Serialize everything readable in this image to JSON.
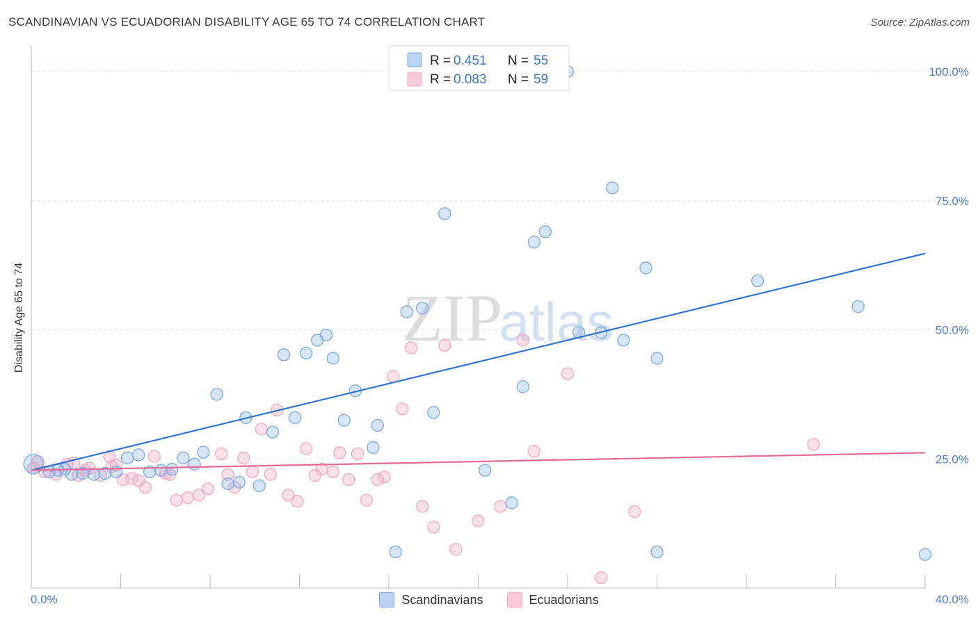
{
  "header": {
    "title": "SCANDINAVIAN VS ECUADORIAN DISABILITY AGE 65 TO 74 CORRELATION CHART",
    "source": "Source: ZipAtlas.com"
  },
  "watermark": {
    "zip": "ZIP",
    "atlas": "atlas"
  },
  "legend_top": {
    "rows": [
      {
        "r_label": "R =",
        "r_value": "0.451",
        "n_label": "N =",
        "n_value": "55"
      },
      {
        "r_label": "R =",
        "r_value": "0.083",
        "n_label": "N =",
        "n_value": "59"
      }
    ]
  },
  "legend_bottom": {
    "items": [
      "Scandinavians",
      "Ecuadorians"
    ]
  },
  "chart_data": {
    "type": "scatter",
    "title": "SCANDINAVIAN VS ECUADORIAN DISABILITY AGE 65 TO 74 CORRELATION CHART",
    "xlabel": "",
    "ylabel": "Disability Age 65 to 74",
    "xlim": [
      0,
      40
    ],
    "ylim": [
      0,
      105
    ],
    "x_tick_labels": [
      "0.0%",
      "40.0%"
    ],
    "y_ticks": [
      25,
      50,
      75,
      100
    ],
    "y_tick_labels": [
      "25.0%",
      "50.0%",
      "75.0%",
      "100.0%"
    ],
    "grid": true,
    "colors": {
      "Scandinavians": "#7aa8e8",
      "Scandinavians_line": "#2f74d0",
      "Ecuadorians": "#f2a7bf",
      "Ecuadorians_line": "#e26a96"
    },
    "series": [
      {
        "name": "Scandinavians",
        "trend": {
          "x": [
            0,
            40
          ],
          "y": [
            22.8,
            64.8
          ]
        },
        "points": [
          [
            0.1,
            24.0
          ],
          [
            0.8,
            22.5
          ],
          [
            1.2,
            22.8
          ],
          [
            1.8,
            22.0
          ],
          [
            2.3,
            22.2
          ],
          [
            2.8,
            22.0
          ],
          [
            3.3,
            22.2
          ],
          [
            3.8,
            22.5
          ],
          [
            4.3,
            25.2
          ],
          [
            4.8,
            25.8
          ],
          [
            5.3,
            22.5
          ],
          [
            5.8,
            22.8
          ],
          [
            6.3,
            23.0
          ],
          [
            6.8,
            25.2
          ],
          [
            7.3,
            24.0
          ],
          [
            7.7,
            26.3
          ],
          [
            8.3,
            37.5
          ],
          [
            8.8,
            20.2
          ],
          [
            9.3,
            20.5
          ],
          [
            9.6,
            33.0
          ],
          [
            10.2,
            19.8
          ],
          [
            10.8,
            30.2
          ],
          [
            11.3,
            45.2
          ],
          [
            11.8,
            33.0
          ],
          [
            12.3,
            45.5
          ],
          [
            12.8,
            48.0
          ],
          [
            13.2,
            49.0
          ],
          [
            13.5,
            44.5
          ],
          [
            14.0,
            32.5
          ],
          [
            14.5,
            38.2
          ],
          [
            15.3,
            27.2
          ],
          [
            15.5,
            31.5
          ],
          [
            16.3,
            7.0
          ],
          [
            16.8,
            53.5
          ],
          [
            17.5,
            54.2
          ],
          [
            18.0,
            34.0
          ],
          [
            18.5,
            72.5
          ],
          [
            19.5,
            100.0
          ],
          [
            20.3,
            22.8
          ],
          [
            21.5,
            16.5
          ],
          [
            22.0,
            39.0
          ],
          [
            22.5,
            67.0
          ],
          [
            23.0,
            69.0
          ],
          [
            24.0,
            100.0
          ],
          [
            24.5,
            49.5
          ],
          [
            25.5,
            49.5
          ],
          [
            26.0,
            77.5
          ],
          [
            26.5,
            48.0
          ],
          [
            27.5,
            62.0
          ],
          [
            28.0,
            44.5
          ],
          [
            28.0,
            7.0
          ],
          [
            32.5,
            59.5
          ],
          [
            37.0,
            54.5
          ],
          [
            40.0,
            6.5
          ],
          [
            1.5,
            23.0
          ]
        ]
      },
      {
        "name": "Ecuadorians",
        "trend": {
          "x": [
            0,
            40
          ],
          "y": [
            22.8,
            26.2
          ]
        },
        "points": [
          [
            0.1,
            23.2
          ],
          [
            0.6,
            22.5
          ],
          [
            1.1,
            22.0
          ],
          [
            1.6,
            24.0
          ],
          [
            2.1,
            21.8
          ],
          [
            2.6,
            23.2
          ],
          [
            3.1,
            21.8
          ],
          [
            3.5,
            25.5
          ],
          [
            3.8,
            23.8
          ],
          [
            4.1,
            21.0
          ],
          [
            4.5,
            21.2
          ],
          [
            4.8,
            20.8
          ],
          [
            5.1,
            19.5
          ],
          [
            5.5,
            25.5
          ],
          [
            6.0,
            22.2
          ],
          [
            6.5,
            17.0
          ],
          [
            7.0,
            17.5
          ],
          [
            7.5,
            18.0
          ],
          [
            7.9,
            19.2
          ],
          [
            8.5,
            26.0
          ],
          [
            8.8,
            22.0
          ],
          [
            9.1,
            19.5
          ],
          [
            9.5,
            25.2
          ],
          [
            9.9,
            22.5
          ],
          [
            10.3,
            30.8
          ],
          [
            10.7,
            22.0
          ],
          [
            11.0,
            34.5
          ],
          [
            11.5,
            18.0
          ],
          [
            11.9,
            16.8
          ],
          [
            12.3,
            27.0
          ],
          [
            12.7,
            21.8
          ],
          [
            13.0,
            23.0
          ],
          [
            13.5,
            22.5
          ],
          [
            13.8,
            26.2
          ],
          [
            14.2,
            21.0
          ],
          [
            14.6,
            26.0
          ],
          [
            15.0,
            17.0
          ],
          [
            15.5,
            21.0
          ],
          [
            15.8,
            21.5
          ],
          [
            16.2,
            41.0
          ],
          [
            16.6,
            34.7
          ],
          [
            17.0,
            46.5
          ],
          [
            17.5,
            15.8
          ],
          [
            18.0,
            11.8
          ],
          [
            18.5,
            47.0
          ],
          [
            19.0,
            7.5
          ],
          [
            20.0,
            13.0
          ],
          [
            21.0,
            15.8
          ],
          [
            22.0,
            48.0
          ],
          [
            22.5,
            26.5
          ],
          [
            24.0,
            41.5
          ],
          [
            25.5,
            2.0
          ],
          [
            27.0,
            14.8
          ],
          [
            35.0,
            27.8
          ],
          [
            0.3,
            24.5
          ],
          [
            1.9,
            24.2
          ],
          [
            2.4,
            22.8
          ],
          [
            3.6,
            23.5
          ],
          [
            6.2,
            22.0
          ]
        ]
      }
    ]
  }
}
